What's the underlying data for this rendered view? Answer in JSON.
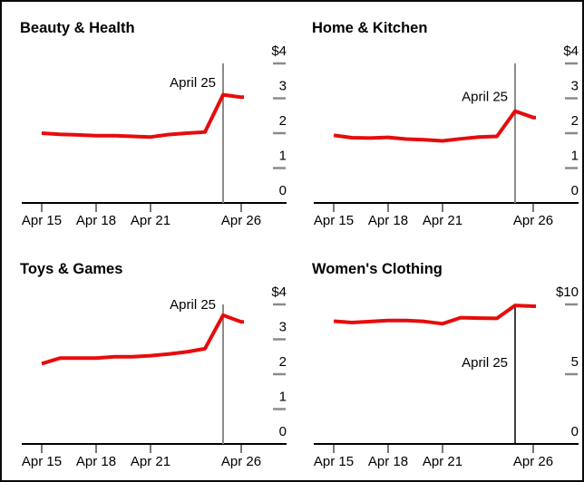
{
  "page": {
    "background": "#ffffff",
    "border_color": "#0a0a0a"
  },
  "colors": {
    "series_red": "#e60c0c",
    "rule_gray": "#8a8a8a",
    "axis_black": "#000000",
    "tick_gray": "#777777",
    "dash_gray": "#8a8a8a",
    "text_black": "#000000"
  },
  "chart_data": [
    {
      "type": "line",
      "title": "Beauty & Health",
      "x": [
        15,
        16,
        17,
        18,
        19,
        20,
        21,
        22,
        23,
        24,
        25,
        26
      ],
      "x_unit": "April date",
      "values": [
        2.0,
        1.97,
        1.95,
        1.93,
        1.93,
        1.91,
        1.89,
        1.96,
        2.0,
        2.03,
        3.1,
        3.03
      ],
      "ylim": [
        0,
        4
      ],
      "y_tick_labels": [
        "$4",
        "3",
        "2",
        "1",
        "0"
      ],
      "y_tick_values": [
        4,
        3,
        2,
        1,
        0
      ],
      "y_dash_values": [
        4,
        3,
        2,
        1
      ],
      "x_tick_labels": [
        "Apr 15",
        "Apr 18",
        "Apr 21",
        "Apr 26"
      ],
      "x_tick_days": [
        15,
        18,
        21,
        26
      ],
      "annotation": {
        "label": "April 25",
        "day": 25,
        "label_value": 3.45,
        "rule_color": "#8a8a8a",
        "rule_width": 2,
        "rule_top_value": 4
      },
      "grid": "off",
      "legend": "none"
    },
    {
      "type": "line",
      "title": "Home & Kitchen",
      "x": [
        15,
        16,
        17,
        18,
        19,
        20,
        21,
        22,
        23,
        24,
        25,
        26
      ],
      "x_unit": "April date",
      "values": [
        1.94,
        1.87,
        1.86,
        1.88,
        1.83,
        1.81,
        1.78,
        1.84,
        1.89,
        1.91,
        2.63,
        2.45
      ],
      "ylim": [
        0,
        4
      ],
      "y_tick_labels": [
        "$4",
        "3",
        "2",
        "1",
        "0"
      ],
      "y_tick_values": [
        4,
        3,
        2,
        1,
        0
      ],
      "y_dash_values": [
        4,
        3,
        2,
        1
      ],
      "x_tick_labels": [
        "Apr 15",
        "Apr 18",
        "Apr 21",
        "Apr 26"
      ],
      "x_tick_days": [
        15,
        18,
        21,
        26
      ],
      "annotation": {
        "label": "April 25",
        "day": 25,
        "label_value": 3.05,
        "rule_color": "#8a8a8a",
        "rule_width": 2,
        "rule_top_value": 4
      },
      "grid": "off",
      "legend": "none"
    },
    {
      "type": "line",
      "title": "Toys & Games",
      "x": [
        15,
        16,
        17,
        18,
        19,
        20,
        21,
        22,
        23,
        24,
        25,
        26
      ],
      "x_unit": "April date",
      "values": [
        2.3,
        2.46,
        2.46,
        2.46,
        2.5,
        2.5,
        2.53,
        2.58,
        2.64,
        2.73,
        3.69,
        3.5
      ],
      "ylim": [
        0,
        4
      ],
      "y_tick_labels": [
        "$4",
        "3",
        "2",
        "1",
        "0"
      ],
      "y_tick_values": [
        4,
        3,
        2,
        1,
        0
      ],
      "y_dash_values": [
        4,
        3,
        2,
        1
      ],
      "x_tick_labels": [
        "Apr 15",
        "Apr 18",
        "Apr 21",
        "Apr 26"
      ],
      "x_tick_days": [
        15,
        18,
        21,
        26
      ],
      "annotation": {
        "label": "April 25",
        "day": 25,
        "label_value": 4.0,
        "rule_color": "#8a8a8a",
        "rule_width": 2,
        "rule_top_value": 4
      },
      "grid": "off",
      "legend": "none"
    },
    {
      "type": "line",
      "title": "Women's Clothing",
      "x": [
        15,
        16,
        17,
        18,
        19,
        20,
        21,
        22,
        23,
        24,
        25,
        26
      ],
      "x_unit": "April date",
      "values": [
        8.8,
        8.7,
        8.77,
        8.85,
        8.85,
        8.78,
        8.62,
        9.05,
        9.02,
        9.0,
        9.93,
        9.87
      ],
      "ylim": [
        0,
        10
      ],
      "y_tick_labels": [
        "$10",
        "5",
        "0"
      ],
      "y_tick_values": [
        10,
        5,
        0
      ],
      "y_dash_values": [
        10,
        5
      ],
      "x_tick_labels": [
        "Apr 15",
        "Apr 18",
        "Apr 21",
        "Apr 26"
      ],
      "x_tick_days": [
        15,
        18,
        21,
        26
      ],
      "annotation": {
        "label": "April 25",
        "day": 25,
        "label_value": 5.85,
        "rule_color": "#000000",
        "rule_width": 1.5,
        "rule_top_value": 9.93
      },
      "grid": "off",
      "legend": "none"
    }
  ]
}
